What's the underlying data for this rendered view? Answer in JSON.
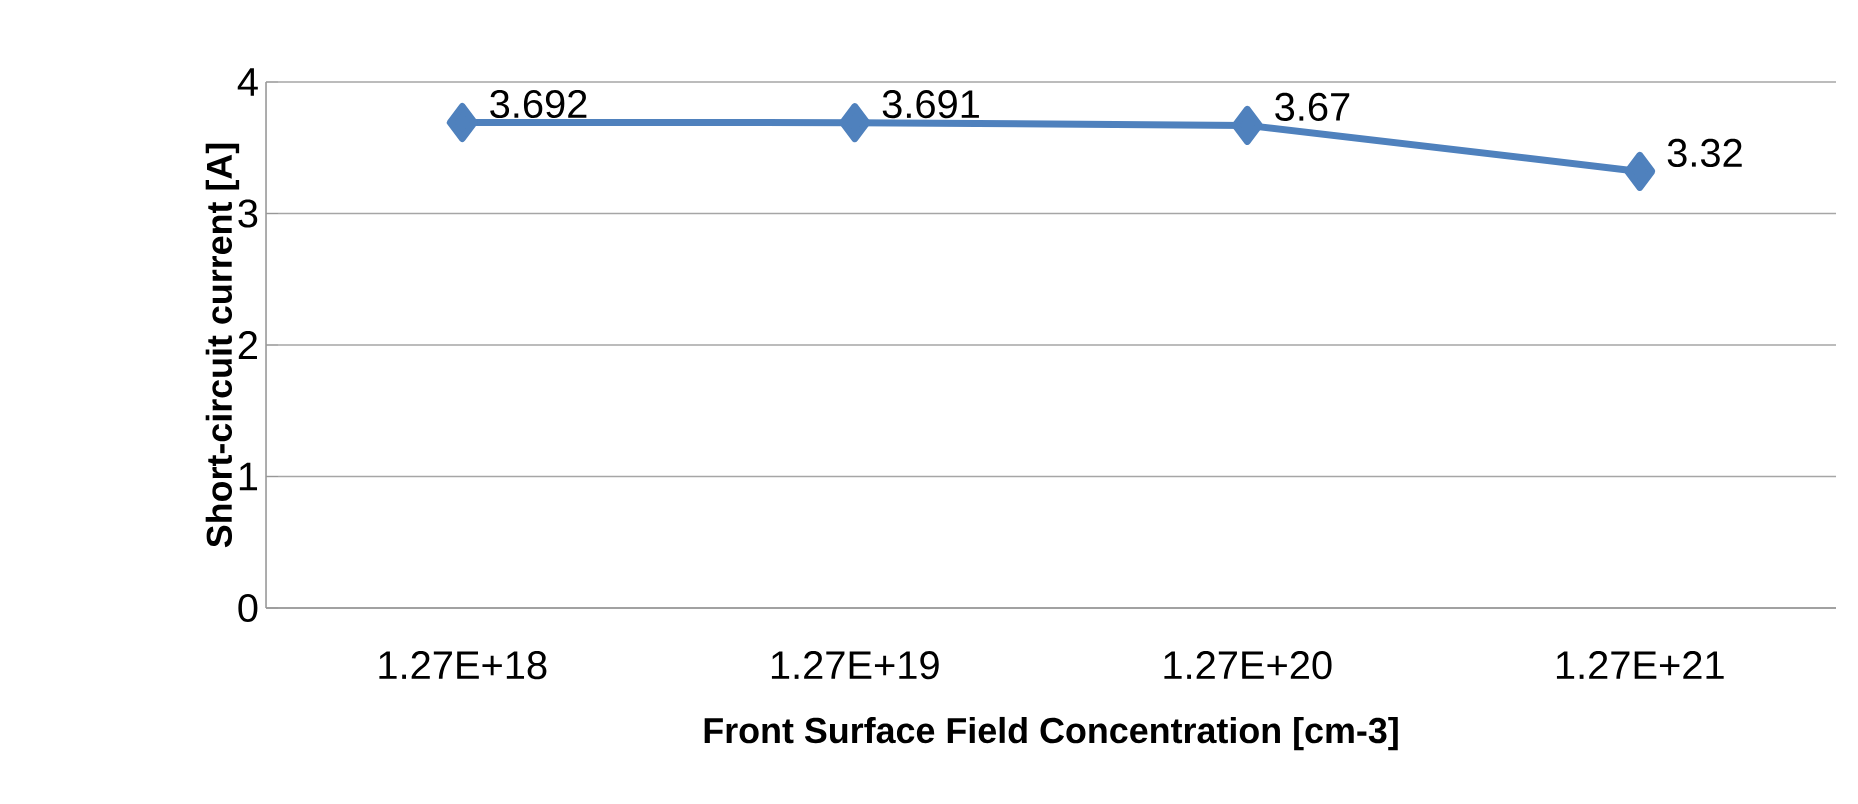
{
  "chart_data": {
    "type": "line",
    "xlabel": "Front Surface Field Concentration [cm-3]",
    "ylabel": "Short-circuit current [A]",
    "categories": [
      "1.27E+18",
      "1.27E+19",
      "1.27E+20",
      "1.27E+21"
    ],
    "series": [
      {
        "color": "#4f81bd",
        "values": [
          3.692,
          3.691,
          3.67,
          3.32
        ]
      }
    ],
    "ylim": [
      0,
      4
    ],
    "yticks": [
      0,
      1,
      2,
      3,
      4
    ],
    "grid": "y",
    "marker": "diamond",
    "line_style": "solid",
    "data_labels": true
  }
}
